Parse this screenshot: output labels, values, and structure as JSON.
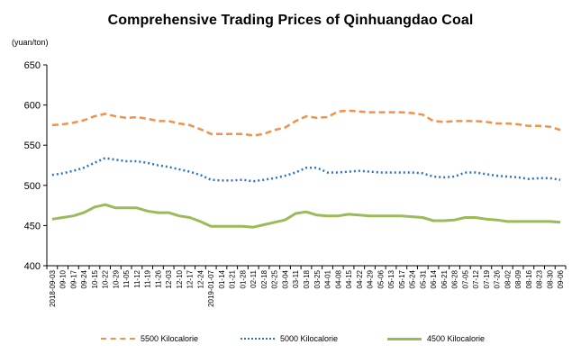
{
  "chart_data": {
    "type": "line",
    "title": "Comprehensive Trading Prices of Qinhuangdao Coal",
    "ylabel": "(yuan/ton)",
    "ylim": [
      400,
      650
    ],
    "yticks": [
      400,
      450,
      500,
      550,
      600,
      650
    ],
    "grid": false,
    "legend_position": "bottom",
    "categories": [
      "2018-09-03",
      "09-10",
      "09-17",
      "09-24",
      "10-15",
      "10-22",
      "10-29",
      "11-05",
      "11-12",
      "11-19",
      "11-26",
      "12-03",
      "12-10",
      "12-17",
      "12-24",
      "2019-01-07",
      "01-14",
      "01-21",
      "01-28",
      "02-11",
      "02-18",
      "02-25",
      "03-04",
      "03-11",
      "03-18",
      "03-25",
      "04-01",
      "04-08",
      "04-15",
      "04-22",
      "04-29",
      "05-06",
      "05-13",
      "05-17",
      "05-24",
      "05-31",
      "06-14",
      "06-21",
      "06-28",
      "07-05",
      "07-12",
      "07-19",
      "07-26",
      "08-02",
      "08-09",
      "08-16",
      "08-23",
      "08-30",
      "09-06"
    ],
    "series": [
      {
        "name": "5500 Kilocalorie",
        "color": "#F0924A",
        "style": "dash",
        "values": [
          575,
          576,
          578,
          581,
          586,
          589,
          586,
          584,
          585,
          583,
          580,
          580,
          577,
          575,
          570,
          564,
          564,
          564,
          564,
          562,
          564,
          569,
          572,
          580,
          586,
          584,
          585,
          592,
          593,
          592,
          591,
          591,
          591,
          591,
          590,
          588,
          580,
          579,
          580,
          580,
          580,
          579,
          577,
          577,
          576,
          574,
          574,
          573,
          569
        ]
      },
      {
        "name": "5000 Kilocalorie",
        "color": "#2F73C6",
        "style": "dot",
        "values": [
          513,
          515,
          518,
          522,
          528,
          534,
          532,
          530,
          530,
          528,
          525,
          523,
          520,
          517,
          513,
          507,
          506,
          506,
          507,
          505,
          507,
          509,
          512,
          516,
          522,
          522,
          516,
          516,
          517,
          518,
          517,
          516,
          516,
          516,
          516,
          515,
          511,
          510,
          511,
          516,
          516,
          514,
          512,
          511,
          510,
          508,
          509,
          509,
          507
        ]
      },
      {
        "name": "4500 Kilocalorie",
        "color": "#9BBB59",
        "style": "solid",
        "values": [
          458,
          460,
          462,
          466,
          473,
          476,
          472,
          472,
          472,
          468,
          466,
          466,
          462,
          460,
          455,
          449,
          449,
          449,
          449,
          448,
          451,
          454,
          457,
          465,
          467,
          463,
          462,
          462,
          464,
          463,
          462,
          462,
          462,
          462,
          461,
          460,
          456,
          456,
          457,
          460,
          460,
          458,
          457,
          455,
          455,
          455,
          455,
          455,
          454
        ]
      }
    ]
  }
}
